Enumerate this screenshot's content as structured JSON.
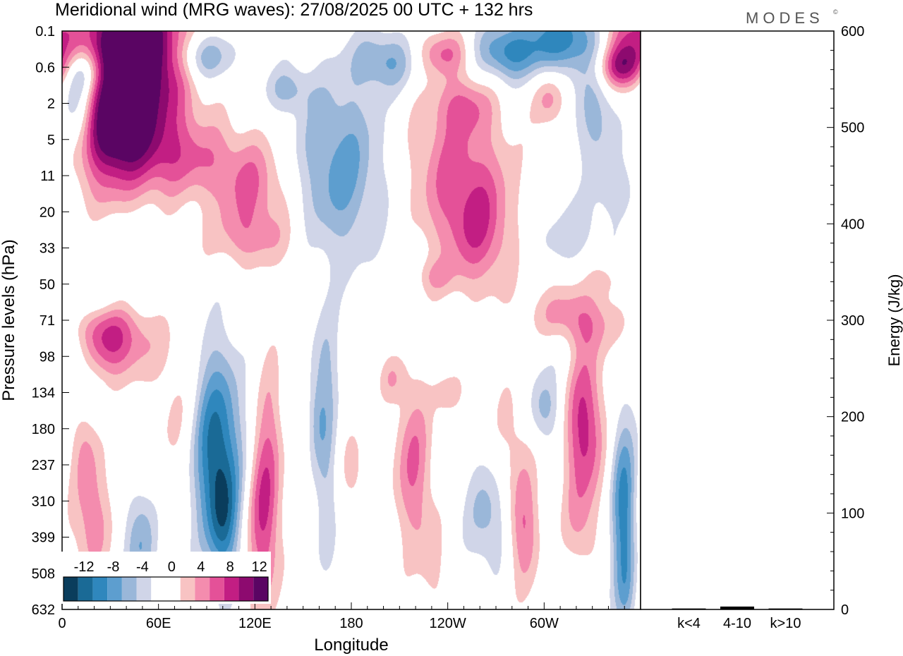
{
  "chart_data": {
    "type": "heatmap",
    "title": "Meridional wind (MRG waves):  27/08/2025  00 UTC  + 132 hrs",
    "brand": "MODES",
    "brand_mark": "©",
    "xlabel": "Longitude",
    "ylabel": "Pressure levels (hPa)",
    "x_ticks": [
      "0",
      "60E",
      "120E",
      "180",
      "120W",
      "60W"
    ],
    "x_tick_degrees": [
      0,
      60,
      120,
      180,
      240,
      300
    ],
    "x_range_degrees": [
      0,
      360
    ],
    "y_ticks": [
      "0.1",
      "0.6",
      "2",
      "5",
      "11",
      "20",
      "33",
      "50",
      "71",
      "98",
      "134",
      "180",
      "237",
      "310",
      "399",
      "508",
      "632"
    ],
    "colorbar": {
      "labels": [
        "-12",
        "-8",
        "-4",
        "0",
        "4",
        "8",
        "12"
      ],
      "colors": [
        "#0a3d5c",
        "#1a6a96",
        "#2f87bd",
        "#5d9ecf",
        "#9ab7d9",
        "#d0d5e8",
        "#ffffff",
        "#ffffff",
        "#f8c3c3",
        "#f48cae",
        "#e45198",
        "#c21e83",
        "#8d0a6f",
        "#5a0563"
      ]
    },
    "features": [
      {
        "sign": "pos",
        "lon": 50,
        "lev": 1.1,
        "lw": 30,
        "lh": 2.8,
        "peak": 13
      },
      {
        "sign": "pos",
        "lon": 28,
        "lev": 3.0,
        "lw": 22,
        "lh": 2.0,
        "peak": 12
      },
      {
        "sign": "pos",
        "lon": 40,
        "lev": 0.2,
        "lw": 24,
        "lh": 1.0,
        "peak": 8
      },
      {
        "sign": "neg",
        "lon": 10,
        "lev": 2.0,
        "lw": 12,
        "lh": 1.4,
        "peak": -8
      },
      {
        "sign": "neg",
        "lon": 12,
        "lev": 1.1,
        "lw": 14,
        "lh": 0.6,
        "peak": -5
      },
      {
        "sign": "neg",
        "lon": 88,
        "lev": 0.7,
        "lw": 18,
        "lh": 0.7,
        "peak": -7
      },
      {
        "sign": "neg",
        "lon": 140,
        "lev": 1.6,
        "lw": 14,
        "lh": 0.6,
        "peak": -4
      },
      {
        "sign": "neg",
        "lon": 172,
        "lev": 3.8,
        "lw": 30,
        "lh": 2.6,
        "peak": -7
      },
      {
        "sign": "neg",
        "lon": 202,
        "lev": 0.8,
        "lw": 20,
        "lh": 0.8,
        "peak": -6
      },
      {
        "sign": "pos",
        "lon": 238,
        "lev": 0.6,
        "lw": 18,
        "lh": 0.6,
        "peak": 6
      },
      {
        "sign": "neg",
        "lon": 275,
        "lev": 0.6,
        "lw": 22,
        "lh": 0.8,
        "peak": -8
      },
      {
        "sign": "neg",
        "lon": 315,
        "lev": 0.2,
        "lw": 28,
        "lh": 1.0,
        "peak": -9
      },
      {
        "sign": "pos",
        "lon": 352,
        "lev": 0.2,
        "lw": 20,
        "lh": 1.1,
        "peak": 9
      },
      {
        "sign": "pos",
        "lon": 348,
        "lev": 1.0,
        "lw": 16,
        "lh": 0.6,
        "peak": 8
      },
      {
        "sign": "neg",
        "lon": 333,
        "lev": 2.4,
        "lw": 14,
        "lh": 1.6,
        "peak": -5
      },
      {
        "sign": "pos",
        "lon": 303,
        "lev": 1.8,
        "lw": 10,
        "lh": 0.8,
        "peak": 5
      },
      {
        "sign": "pos",
        "lon": 250,
        "lev": 2.0,
        "lw": 18,
        "lh": 0.8,
        "peak": 4
      },
      {
        "sign": "pos",
        "lon": 245,
        "lev": 3.8,
        "lw": 32,
        "lh": 2.2,
        "peak": 6
      },
      {
        "sign": "pos",
        "lon": 260,
        "lev": 5.6,
        "lw": 22,
        "lh": 1.6,
        "peak": 6
      },
      {
        "sign": "pos",
        "lon": 78,
        "lev": 3.5,
        "lw": 32,
        "lh": 1.0,
        "peak": 4
      },
      {
        "sign": "pos",
        "lon": 118,
        "lev": 4.4,
        "lw": 26,
        "lh": 1.5,
        "peak": 6
      },
      {
        "sign": "pos",
        "lon": 120,
        "lev": 5.8,
        "lw": 30,
        "lh": 0.8,
        "peak": 3
      },
      {
        "sign": "neg",
        "lon": 30,
        "lev": 4.0,
        "lw": 20,
        "lh": 1.0,
        "peak": -4
      },
      {
        "sign": "neg",
        "lon": 38,
        "lev": 5.7,
        "lw": 28,
        "lh": 1.0,
        "peak": -3
      },
      {
        "sign": "neg",
        "lon": 315,
        "lev": 5.6,
        "lw": 30,
        "lh": 1.1,
        "peak": -3
      },
      {
        "sign": "neg",
        "lon": 348,
        "lev": 4.3,
        "lw": 14,
        "lh": 0.8,
        "peak": -3
      },
      {
        "sign": "neg",
        "lon": 20,
        "lev": 7.4,
        "lw": 30,
        "lh": 0.6,
        "peak": -3
      },
      {
        "sign": "pos",
        "lon": 30,
        "lev": 8.5,
        "lw": 24,
        "lh": 1.1,
        "peak": 9
      },
      {
        "sign": "neg",
        "lon": 8,
        "lev": 9.0,
        "lw": 12,
        "lh": 1.0,
        "peak": -4
      },
      {
        "sign": "pos",
        "lon": 318,
        "lev": 8.0,
        "lw": 28,
        "lh": 1.0,
        "peak": 6
      },
      {
        "sign": "neg",
        "lon": 308,
        "lev": 8.7,
        "lw": 18,
        "lh": 0.8,
        "peak": -3
      },
      {
        "sign": "neg",
        "lon": 163,
        "lev": 9.3,
        "lw": 10,
        "lh": 1.6,
        "peak": -3
      },
      {
        "sign": "neg",
        "lon": 96,
        "lev": 11.6,
        "lw": 16,
        "lh": 2.8,
        "peak": -11
      },
      {
        "sign": "neg",
        "lon": 100,
        "lev": 13.6,
        "lw": 9,
        "lh": 1.6,
        "peak": -6
      },
      {
        "sign": "pos",
        "lon": 72,
        "lev": 10.6,
        "lw": 14,
        "lh": 2.4,
        "peak": 3
      },
      {
        "sign": "pos",
        "lon": 125,
        "lev": 13.5,
        "lw": 10,
        "lh": 2.6,
        "peak": 8
      },
      {
        "sign": "pos",
        "lon": 130,
        "lev": 11.0,
        "lw": 8,
        "lh": 2.4,
        "peak": 3
      },
      {
        "sign": "pos",
        "lon": 14,
        "lev": 11.6,
        "lw": 8,
        "lh": 1.2,
        "peak": 4
      },
      {
        "sign": "pos",
        "lon": 18,
        "lev": 13.6,
        "lw": 14,
        "lh": 1.6,
        "peak": 5
      },
      {
        "sign": "neg",
        "lon": 48,
        "lev": 14.2,
        "lw": 10,
        "lh": 1.6,
        "peak": -6
      },
      {
        "sign": "neg",
        "lon": 165,
        "lev": 12.5,
        "lw": 7,
        "lh": 3.2,
        "peak": -4
      },
      {
        "sign": "neg",
        "lon": 158,
        "lev": 10.8,
        "lw": 6,
        "lh": 1.2,
        "peak": -3
      },
      {
        "sign": "pos",
        "lon": 218,
        "lev": 12.0,
        "lw": 12,
        "lh": 2.4,
        "peak": 6
      },
      {
        "sign": "pos",
        "lon": 230,
        "lev": 14.6,
        "lw": 8,
        "lh": 1.4,
        "peak": 3
      },
      {
        "sign": "pos",
        "lon": 181,
        "lev": 12.2,
        "lw": 8,
        "lh": 1.4,
        "peak": 3
      },
      {
        "sign": "neg",
        "lon": 265,
        "lev": 13.4,
        "lw": 14,
        "lh": 1.6,
        "peak": -5
      },
      {
        "sign": "pos",
        "lon": 287,
        "lev": 13.8,
        "lw": 10,
        "lh": 1.6,
        "peak": 6
      },
      {
        "sign": "pos",
        "lon": 280,
        "lev": 11.4,
        "lw": 12,
        "lh": 1.8,
        "peak": 3
      },
      {
        "sign": "neg",
        "lon": 300,
        "lev": 10.4,
        "lw": 10,
        "lh": 1.0,
        "peak": -5
      },
      {
        "sign": "pos",
        "lon": 325,
        "lev": 11.0,
        "lw": 12,
        "lh": 2.2,
        "peak": 9
      },
      {
        "sign": "pos",
        "lon": 322,
        "lev": 13.8,
        "lw": 10,
        "lh": 1.2,
        "peak": 3
      },
      {
        "sign": "neg",
        "lon": 349,
        "lev": 13.2,
        "lw": 8,
        "lh": 2.6,
        "peak": -9
      },
      {
        "sign": "neg",
        "lon": 351,
        "lev": 15.6,
        "lw": 6,
        "lh": 1.2,
        "peak": -3
      },
      {
        "sign": "pos",
        "lon": 240,
        "lev": 10.0,
        "lw": 10,
        "lh": 0.6,
        "peak": 3
      },
      {
        "sign": "pos",
        "lon": 205,
        "lev": 9.6,
        "lw": 8,
        "lh": 0.6,
        "peak": 3
      },
      {
        "sign": "pos",
        "lon": 232,
        "lev": 6.8,
        "lw": 12,
        "lh": 0.5,
        "peak": 3
      },
      {
        "sign": "pos",
        "lon": 337,
        "lev": 6.8,
        "lw": 10,
        "lh": 0.5,
        "peak": 3
      }
    ],
    "energy_panel": {
      "ylabel": "Energy (J/kg)",
      "ylim": [
        0,
        600
      ],
      "y_ticks": [
        0,
        100,
        200,
        300,
        400,
        500,
        600
      ],
      "categories": [
        "k<4",
        "4-10",
        "k>10"
      ],
      "values": [
        1,
        3,
        1
      ]
    }
  }
}
